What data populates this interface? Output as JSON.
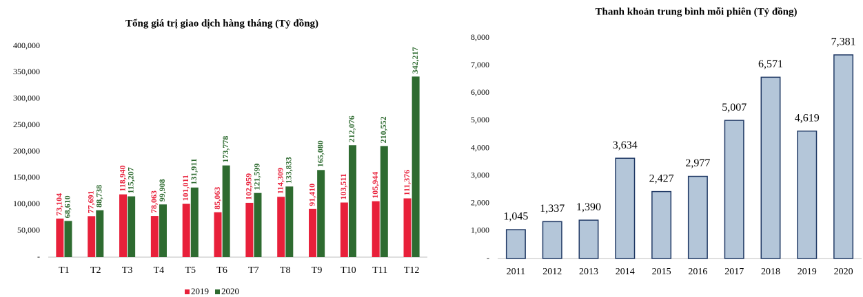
{
  "chart_data": [
    {
      "type": "grouped_bar",
      "title": "Tổng giá trị giao dịch hàng tháng (Tỷ đồng)",
      "categories": [
        "T1",
        "T2",
        "T3",
        "T4",
        "T5",
        "T6",
        "T7",
        "T8",
        "T9",
        "T10",
        "T11",
        "T12"
      ],
      "series": [
        {
          "name": "2019",
          "color": "#e8203a",
          "values": [
            73104,
            77691,
            118940,
            78063,
            101011,
            85063,
            102959,
            114309,
            91410,
            103511,
            105944,
            111376
          ],
          "value_labels": [
            "73,104",
            "77,691",
            "118,940",
            "78,063",
            "101,011",
            "85,063",
            "102,959",
            "114,309",
            "91,410",
            "103,511",
            "105,944",
            "111,376"
          ]
        },
        {
          "name": "2020",
          "color": "#2e6b30",
          "values": [
            68610,
            88738,
            115207,
            99908,
            131911,
            173778,
            121599,
            133833,
            165080,
            212076,
            210552,
            342217
          ],
          "value_labels": [
            "68,610",
            "88,738",
            "115,207",
            "99,908",
            "131,911",
            "173,778",
            "121,599",
            "133,833",
            "165,080",
            "212,076",
            "210,552",
            "342,217"
          ]
        }
      ],
      "ylim": [
        0,
        400000
      ],
      "yticks": [
        {
          "value": 0,
          "label": "-"
        },
        {
          "value": 50000,
          "label": "50,000"
        },
        {
          "value": 100000,
          "label": "100,000"
        },
        {
          "value": 150000,
          "label": "150,000"
        },
        {
          "value": 200000,
          "label": "200,000"
        },
        {
          "value": 250000,
          "label": "250,000"
        },
        {
          "value": 300000,
          "label": "300,000"
        },
        {
          "value": 350000,
          "label": "350,000"
        },
        {
          "value": 400000,
          "label": "400,000"
        }
      ],
      "legend": "bottom"
    },
    {
      "type": "bar",
      "title": "Thanh khoản trung bình mỗi phiên (Tỷ đồng)",
      "categories": [
        "2011",
        "2012",
        "2013",
        "2014",
        "2015",
        "2016",
        "2017",
        "2018",
        "2019",
        "2020"
      ],
      "values": [
        1045,
        1337,
        1390,
        3634,
        2427,
        2977,
        5007,
        6571,
        4619,
        7381
      ],
      "value_labels": [
        "1,045",
        "1,337",
        "1,390",
        "3,634",
        "2,427",
        "2,977",
        "5,007",
        "6,571",
        "4,619",
        "7,381"
      ],
      "color": "#b4c6d9",
      "edge_color": "#1f3864",
      "ylim": [
        0,
        8000
      ],
      "yticks": [
        {
          "value": 0,
          "label": "-"
        },
        {
          "value": 1000,
          "label": "1,000"
        },
        {
          "value": 2000,
          "label": "2,000"
        },
        {
          "value": 3000,
          "label": "3,000"
        },
        {
          "value": 4000,
          "label": "4,000"
        },
        {
          "value": 5000,
          "label": "5,000"
        },
        {
          "value": 6000,
          "label": "6,000"
        },
        {
          "value": 7000,
          "label": "7,000"
        },
        {
          "value": 8000,
          "label": "8,000"
        }
      ]
    }
  ]
}
